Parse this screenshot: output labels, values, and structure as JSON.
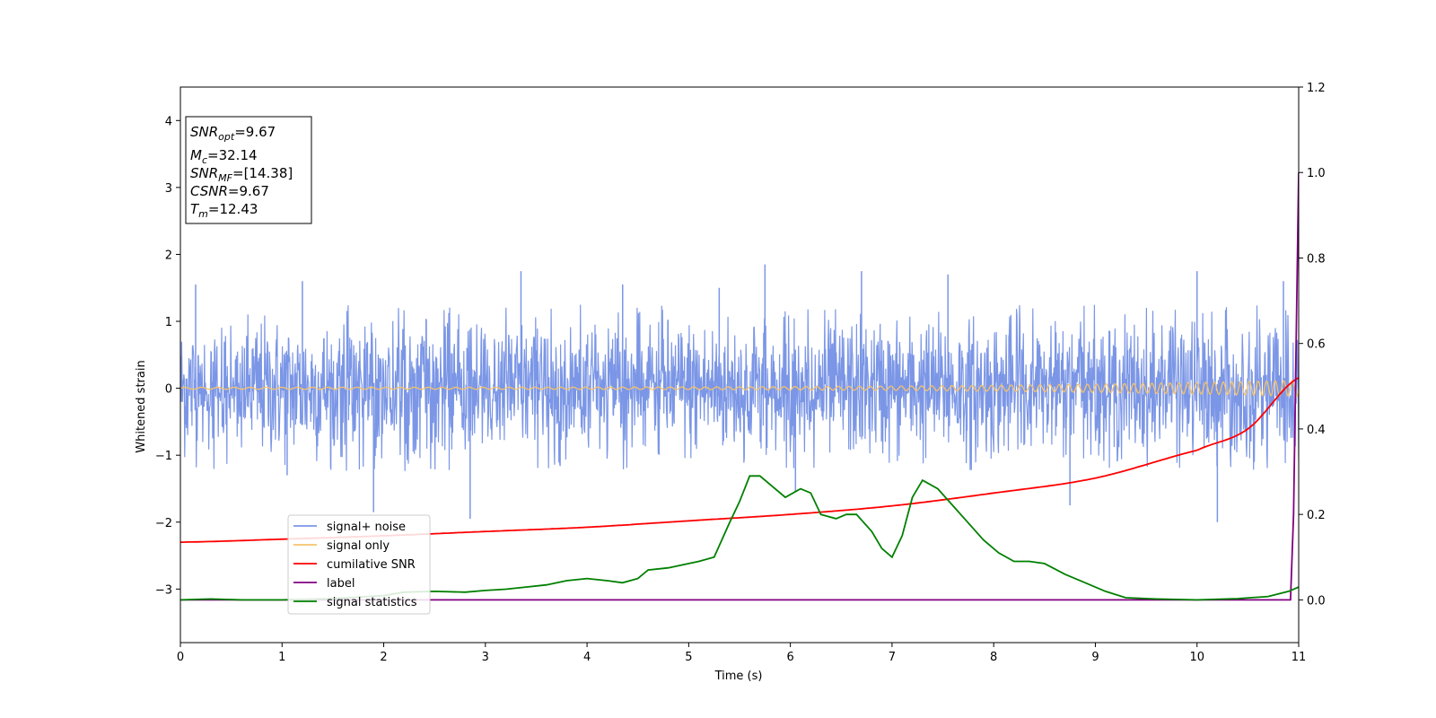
{
  "chart_data": {
    "type": "line",
    "xlabel": "Time (s)",
    "ylabel_left": "Whitened strain",
    "ylabel_right": "",
    "xlim": [
      0,
      11
    ],
    "ylim_left": [
      -3.8,
      4.5
    ],
    "ylim_right": [
      -0.1,
      1.2
    ],
    "x_ticks": [
      0,
      1,
      2,
      3,
      4,
      5,
      6,
      7,
      8,
      9,
      10,
      11
    ],
    "y_ticks_left": [
      -3,
      -2,
      -1,
      0,
      1,
      2,
      3,
      4
    ],
    "y_ticks_right": [
      "0.0",
      "0.2",
      "0.4",
      "0.6",
      "0.8",
      "1.0",
      "1.2"
    ],
    "grid": false,
    "legend_position": "lower-left",
    "annotation": {
      "snr_opt": {
        "sym": "SNR",
        "sub": "opt",
        "value": "=9.67"
      },
      "mc": {
        "sym": "M",
        "sub": "c",
        "value": "=32.14"
      },
      "snr_mf": {
        "sym": "SNR",
        "sub": "MF",
        "value": "=[14.38]"
      },
      "csnr": {
        "sym": "CSNR",
        "value": "=9.67"
      },
      "tm": {
        "sym": "T",
        "sub": "m",
        "value": "=12.43"
      }
    },
    "series": [
      {
        "name": "signal+ noise",
        "axis": "left",
        "color": "#7b96e6",
        "description_of_shape": "noise, mostly within about ±1.2, spikes reaching ~1.85 and ~-1.95",
        "envelope_upper": 1.25,
        "envelope_lower": -1.25,
        "spikes": [
          [
            0.15,
            1.55
          ],
          [
            1.05,
            -1.3
          ],
          [
            1.2,
            1.6
          ],
          [
            1.9,
            -1.85
          ],
          [
            2.85,
            -1.95
          ],
          [
            3.35,
            1.75
          ],
          [
            4.35,
            1.55
          ],
          [
            5.3,
            1.5
          ],
          [
            5.75,
            1.85
          ],
          [
            6.05,
            -1.55
          ],
          [
            6.7,
            1.75
          ],
          [
            7.55,
            1.7
          ],
          [
            8.75,
            -1.75
          ],
          [
            10.0,
            1.75
          ],
          [
            10.2,
            -2.0
          ],
          [
            10.85,
            1.6
          ]
        ]
      },
      {
        "name": "signal only",
        "axis": "left",
        "color": "#f5c26b",
        "description_of_shape": "chirp around 0 with amplitude growing to ~0.12 near t=11"
      },
      {
        "name": "cumilative SNR",
        "axis": "right",
        "color": "#ff0000",
        "points": [
          [
            0,
            0.135
          ],
          [
            1,
            0.142
          ],
          [
            2,
            0.15
          ],
          [
            3,
            0.16
          ],
          [
            4,
            0.17
          ],
          [
            5,
            0.185
          ],
          [
            6,
            0.2
          ],
          [
            7,
            0.22
          ],
          [
            8,
            0.25
          ],
          [
            9,
            0.285
          ],
          [
            10,
            0.35
          ],
          [
            10.5,
            0.4
          ],
          [
            11,
            0.52
          ]
        ]
      },
      {
        "name": "label",
        "axis": "right",
        "color": "#800080",
        "points": [
          [
            0,
            0.0
          ],
          [
            10.92,
            0.0
          ],
          [
            10.95,
            0.2
          ],
          [
            11,
            1.0
          ]
        ]
      },
      {
        "name": "signal statistics",
        "axis": "right",
        "color": "#008000",
        "points": [
          [
            0,
            0.0
          ],
          [
            0.3,
            0.002
          ],
          [
            0.6,
            0.0
          ],
          [
            1.0,
            0.0
          ],
          [
            1.5,
            0.003
          ],
          [
            2.0,
            0.01
          ],
          [
            2.2,
            0.018
          ],
          [
            2.5,
            0.02
          ],
          [
            2.8,
            0.018
          ],
          [
            3.0,
            0.022
          ],
          [
            3.2,
            0.025
          ],
          [
            3.4,
            0.03
          ],
          [
            3.6,
            0.035
          ],
          [
            3.8,
            0.045
          ],
          [
            4.0,
            0.05
          ],
          [
            4.2,
            0.045
          ],
          [
            4.35,
            0.04
          ],
          [
            4.5,
            0.05
          ],
          [
            4.6,
            0.07
          ],
          [
            4.8,
            0.075
          ],
          [
            5.0,
            0.085
          ],
          [
            5.1,
            0.09
          ],
          [
            5.25,
            0.1
          ],
          [
            5.4,
            0.18
          ],
          [
            5.5,
            0.23
          ],
          [
            5.6,
            0.29
          ],
          [
            5.7,
            0.29
          ],
          [
            5.8,
            0.27
          ],
          [
            5.95,
            0.24
          ],
          [
            6.1,
            0.26
          ],
          [
            6.2,
            0.25
          ],
          [
            6.3,
            0.2
          ],
          [
            6.45,
            0.19
          ],
          [
            6.55,
            0.2
          ],
          [
            6.65,
            0.2
          ],
          [
            6.8,
            0.16
          ],
          [
            6.9,
            0.12
          ],
          [
            7.0,
            0.1
          ],
          [
            7.1,
            0.15
          ],
          [
            7.2,
            0.24
          ],
          [
            7.3,
            0.28
          ],
          [
            7.45,
            0.26
          ],
          [
            7.6,
            0.22
          ],
          [
            7.75,
            0.18
          ],
          [
            7.9,
            0.14
          ],
          [
            8.05,
            0.11
          ],
          [
            8.2,
            0.09
          ],
          [
            8.35,
            0.09
          ],
          [
            8.5,
            0.085
          ],
          [
            8.7,
            0.06
          ],
          [
            8.9,
            0.04
          ],
          [
            9.1,
            0.02
          ],
          [
            9.3,
            0.005
          ],
          [
            9.6,
            0.002
          ],
          [
            10.0,
            0.0
          ],
          [
            10.4,
            0.003
          ],
          [
            10.7,
            0.008
          ],
          [
            10.9,
            0.02
          ],
          [
            11.0,
            0.03
          ]
        ]
      }
    ],
    "legend": [
      {
        "label": "signal+ noise",
        "color": "#7b96e6"
      },
      {
        "label": "signal only",
        "color": "#f5c26b"
      },
      {
        "label": "cumilative SNR",
        "color": "#ff0000"
      },
      {
        "label": "label",
        "color": "#800080"
      },
      {
        "label": "signal statistics",
        "color": "#008000"
      }
    ]
  }
}
